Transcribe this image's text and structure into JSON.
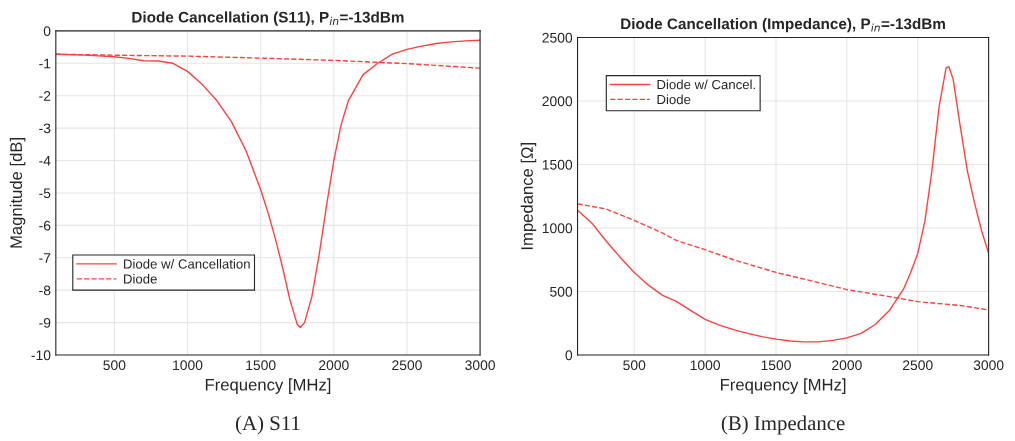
{
  "chart_data": [
    {
      "type": "line",
      "title": "Diode Cancellation (S11), P$_{in}$=-13dBm",
      "xlabel": "Frequency [MHz]",
      "ylabel": "Magnitude [dB]",
      "annotations": [
        "(A) S11"
      ],
      "xlim": [
        100,
        3000
      ],
      "xticks": [
        500,
        1000,
        1500,
        2000,
        2500,
        3000
      ],
      "ylim": [
        -10,
        0
      ],
      "yticks": [
        -10,
        -9,
        -8,
        -7,
        -6,
        -5,
        -4,
        -3,
        -2,
        -1,
        0
      ],
      "grid": true,
      "legend": "bottom left",
      "series": [
        {
          "name": "Diode w/ Cancellation",
          "color": "#ff4040",
          "line_style": "solid",
          "x": [
            100,
            300,
            500,
            600,
            700,
            800,
            900,
            1000,
            1100,
            1200,
            1300,
            1400,
            1500,
            1550,
            1600,
            1650,
            1700,
            1750,
            1770,
            1800,
            1850,
            1900,
            1950,
            2000,
            2050,
            2100,
            2200,
            2300,
            2400,
            2500,
            2600,
            2700,
            2800,
            2900,
            3000
          ],
          "values": [
            -0.72,
            -0.75,
            -0.8,
            -0.85,
            -0.92,
            -0.93,
            -1.0,
            -1.25,
            -1.65,
            -2.15,
            -2.8,
            -3.7,
            -4.9,
            -5.6,
            -6.4,
            -7.3,
            -8.3,
            -9.05,
            -9.15,
            -9.0,
            -8.2,
            -6.9,
            -5.4,
            -4.0,
            -2.9,
            -2.15,
            -1.35,
            -1.0,
            -0.72,
            -0.57,
            -0.47,
            -0.39,
            -0.34,
            -0.31,
            -0.29
          ]
        },
        {
          "name": "Diode",
          "color": "#ff4040",
          "line_style": "dashed",
          "x": [
            100,
            500,
            1000,
            1500,
            2000,
            2500,
            3000
          ],
          "values": [
            -0.72,
            -0.75,
            -0.78,
            -0.84,
            -0.91,
            -1.01,
            -1.15
          ]
        }
      ]
    },
    {
      "type": "line",
      "title": "Diode Cancellation (Impedance), P$_{in}$=-13dBm",
      "xlabel": "Frequency [MHz]",
      "ylabel": "Impedance [Ω]",
      "annotations": [
        "(B) Impedance"
      ],
      "xlim": [
        100,
        3000
      ],
      "xticks": [
        500,
        1000,
        1500,
        2000,
        2500,
        3000
      ],
      "ylim": [
        0,
        2500
      ],
      "yticks": [
        0,
        500,
        1000,
        1500,
        2000,
        2500
      ],
      "grid": true,
      "legend": "top left",
      "series": [
        {
          "name": "Diode w/ Cancel.",
          "color": "#ff4040",
          "line_style": "solid",
          "x": [
            100,
            200,
            300,
            400,
            500,
            600,
            700,
            800,
            900,
            1000,
            1100,
            1200,
            1300,
            1400,
            1500,
            1600,
            1700,
            1800,
            1900,
            2000,
            2100,
            2200,
            2300,
            2400,
            2450,
            2500,
            2550,
            2600,
            2650,
            2700,
            2720,
            2750,
            2800,
            2850,
            2900,
            2950,
            3000
          ],
          "values": [
            1140,
            1040,
            900,
            770,
            650,
            550,
            470,
            420,
            350,
            280,
            235,
            200,
            170,
            145,
            125,
            110,
            103,
            103,
            115,
            135,
            170,
            240,
            350,
            520,
            650,
            800,
            1050,
            1450,
            1950,
            2260,
            2270,
            2170,
            1800,
            1450,
            1200,
            980,
            800
          ]
        },
        {
          "name": "Diode",
          "color": "#ff4040",
          "line_style": "dashed",
          "x": [
            100,
            300,
            500,
            700,
            800,
            1000,
            1200,
            1500,
            1800,
            2000,
            2300,
            2500,
            2800,
            3000
          ],
          "values": [
            1190,
            1150,
            1060,
            960,
            900,
            830,
            750,
            650,
            570,
            515,
            460,
            420,
            390,
            355
          ]
        }
      ]
    }
  ]
}
